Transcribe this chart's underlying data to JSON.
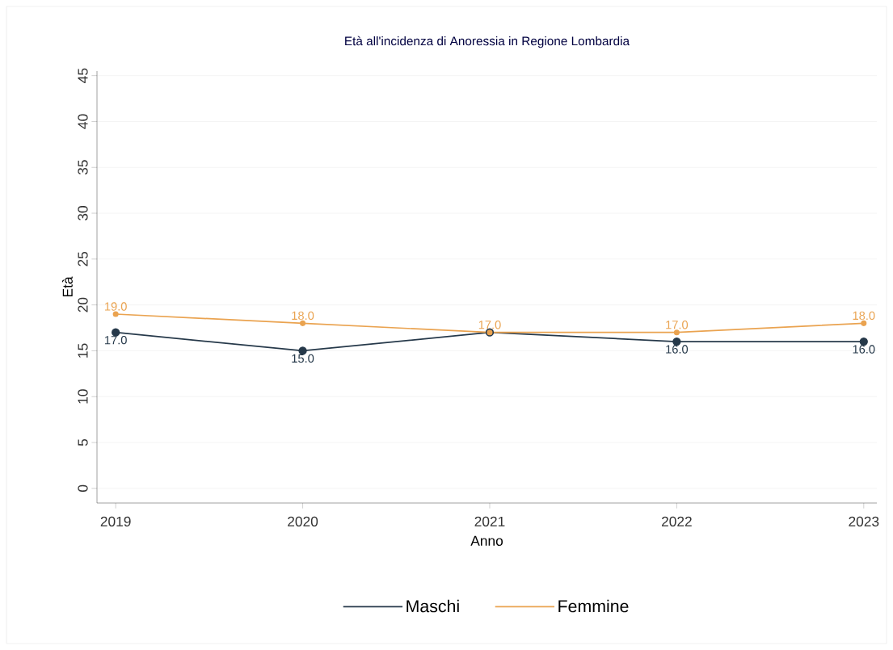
{
  "chart_data": {
    "type": "line",
    "title": "Età all'incidenza di Anoressia in Regione Lombardia",
    "xlabel": "Anno",
    "ylabel": "Età",
    "x": [
      2019,
      2020,
      2021,
      2022,
      2023
    ],
    "series": [
      {
        "name": "Maschi",
        "color": "#26394a",
        "values": [
          17,
          15,
          17,
          16,
          16
        ],
        "value_labels": [
          "17.0",
          "15.0",
          null,
          "16.0",
          "16.0"
        ]
      },
      {
        "name": "Femmine",
        "color": "#eaa350",
        "values": [
          19,
          18,
          17,
          17,
          18
        ],
        "value_labels": [
          "19.0",
          "18.0",
          "17.0",
          "17.0",
          "18.0"
        ]
      }
    ],
    "xlim": [
      2018.9,
      2023.07
    ],
    "xticks": [
      2019,
      2020,
      2021,
      2022,
      2023
    ],
    "ylim": [
      -1.6,
      45.5
    ],
    "yticks": [
      0,
      5,
      10,
      15,
      20,
      25,
      30,
      35,
      40,
      45
    ],
    "grid": "y",
    "legend": "bottom",
    "marker": "circle",
    "line_style": "solid"
  }
}
